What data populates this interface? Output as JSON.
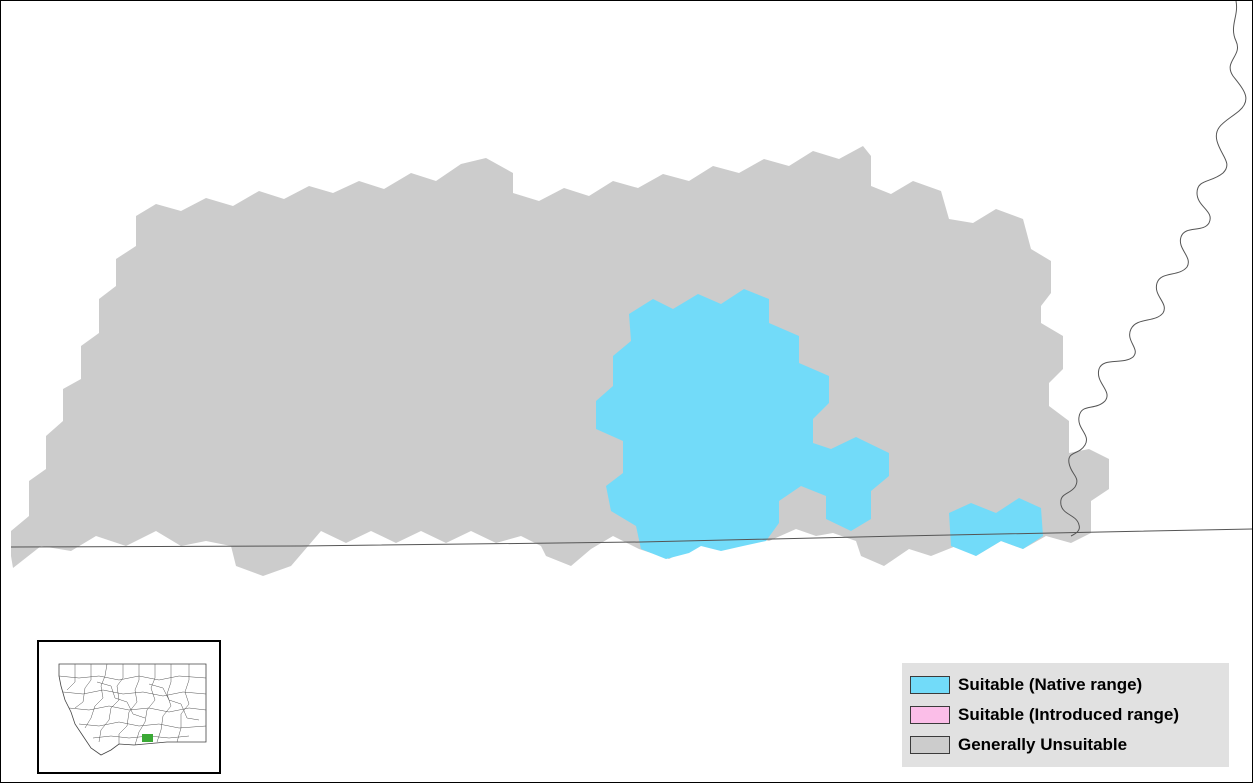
{
  "map": {
    "colors": {
      "native": "#72dbf9",
      "introduced": "#fbbee8",
      "unsuitable": "#cccccc",
      "water_line": "#555555",
      "state_line": "#555555",
      "highlight_county": "#3aa935"
    }
  },
  "legend": {
    "items": [
      {
        "label": "Suitable (Native range)",
        "color": "#72dbf9"
      },
      {
        "label": "Suitable (Introduced range)",
        "color": "#fbbee8"
      },
      {
        "label": "Generally Unsuitable",
        "color": "#cccccc"
      }
    ]
  }
}
